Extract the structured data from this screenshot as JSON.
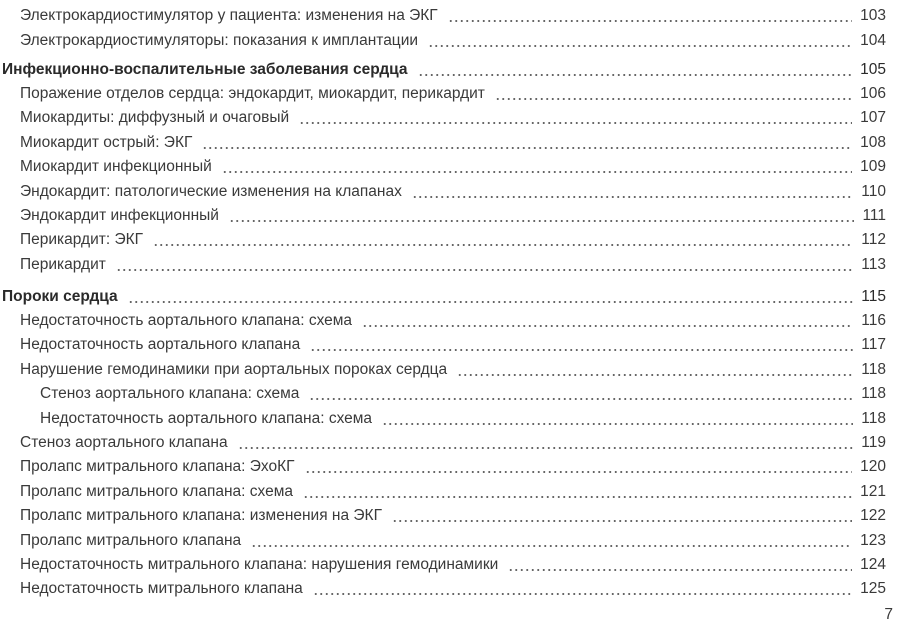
{
  "toc": [
    {
      "level": 1,
      "title": "Электрокардиостимулятор у пациента: изменения на ЭКГ",
      "page": "103"
    },
    {
      "level": 1,
      "title": "Электрокардиостимуляторы: показания к имплантации",
      "page": "104"
    },
    {
      "level": 0,
      "title": "Инфекционно-воспалительные заболевания сердца",
      "page": "105"
    },
    {
      "level": 1,
      "title": "Поражение отделов сердца: эндокардит, миокардит, перикардит",
      "page": "106"
    },
    {
      "level": 1,
      "title": "Миокардиты: диффузный и очаговый",
      "page": "107"
    },
    {
      "level": 1,
      "title": "Миокардит острый: ЭКГ",
      "page": "108"
    },
    {
      "level": 1,
      "title": "Миокардит инфекционный",
      "page": "109"
    },
    {
      "level": 1,
      "title": "Эндокардит: патологические изменения на клапанах",
      "page": "110"
    },
    {
      "level": 1,
      "title": "Эндокардит инфекционный",
      "page": "111"
    },
    {
      "level": 1,
      "title": "Перикардит: ЭКГ",
      "page": "112"
    },
    {
      "level": 1,
      "title": "Перикардит",
      "page": "113"
    },
    {
      "level": 0,
      "title": "Пороки сердца",
      "page": "115"
    },
    {
      "level": 1,
      "title": "Недостаточность аортального клапана: схема",
      "page": "116"
    },
    {
      "level": 1,
      "title": "Недостаточность аортального клапана",
      "page": "117"
    },
    {
      "level": 1,
      "title": "Нарушение гемодинамики при аортальных пороках сердца",
      "page": "118"
    },
    {
      "level": 2,
      "title": "Стеноз аортального клапана: схема",
      "page": "118"
    },
    {
      "level": 2,
      "title": "Недостаточность аортального клапана: схема",
      "page": "118"
    },
    {
      "level": 1,
      "title": "Стеноз аортального клапана",
      "page": "119"
    },
    {
      "level": 1,
      "title": "Пролапс митрального клапана: ЭхоКГ",
      "page": "120"
    },
    {
      "level": 1,
      "title": "Пролапс митрального клапана: схема",
      "page": "121"
    },
    {
      "level": 1,
      "title": "Пролапс митрального клапана: изменения на ЭКГ",
      "page": "122"
    },
    {
      "level": 1,
      "title": "Пролапс митрального клапана",
      "page": "123"
    },
    {
      "level": 1,
      "title": "Недостаточность митрального клапана: нарушения гемодинамики",
      "page": "124"
    },
    {
      "level": 1,
      "title": "Недостаточность митрального клапана",
      "page": "125"
    }
  ],
  "page_number": "7"
}
